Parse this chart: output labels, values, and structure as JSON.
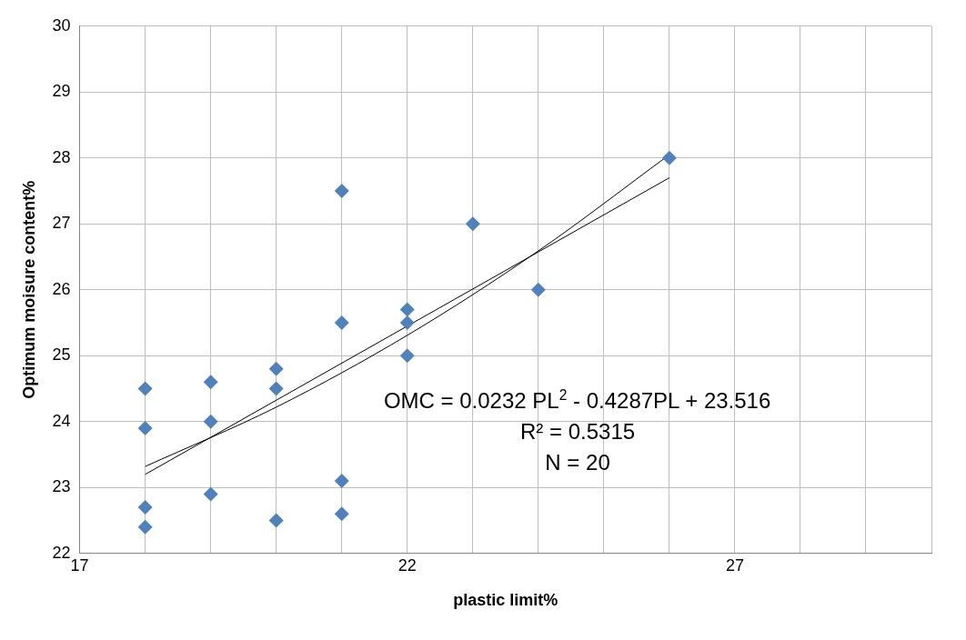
{
  "chart_data": {
    "type": "scatter",
    "xlabel": "plastic limit%",
    "ylabel": "Optimum moisure content%",
    "xlim": [
      17,
      30
    ],
    "xticks": [
      17,
      {
        "value": 18,
        "label": null
      },
      {
        "value": 19,
        "label": null
      },
      {
        "value": 20,
        "label": null
      },
      {
        "value": 21,
        "label": null
      },
      22,
      {
        "value": 23,
        "label": null
      },
      {
        "value": 24,
        "label": null
      },
      {
        "value": 25,
        "label": null
      },
      {
        "value": 26,
        "label": null
      },
      27,
      {
        "value": 28,
        "label": null
      },
      {
        "value": 29,
        "label": null
      },
      {
        "value": 30,
        "label": null
      }
    ],
    "ylim": [
      22,
      30
    ],
    "yticks": [
      22,
      23,
      24,
      25,
      26,
      27,
      28,
      29,
      30
    ],
    "grid": true,
    "legend": false,
    "marker": "diamond",
    "series": [
      {
        "type": "scatter",
        "color": "#4f81bd",
        "x": [
          18,
          18,
          18,
          18,
          19,
          19,
          19,
          20,
          20,
          20,
          21,
          21,
          21,
          21,
          22,
          22,
          22,
          23,
          24,
          26
        ],
        "values": [
          24.5,
          23.9,
          22.7,
          22.4,
          24.6,
          24.0,
          22.9,
          24.8,
          24.5,
          22.5,
          27.5,
          25.5,
          23.1,
          22.6,
          25.7,
          25.5,
          25.0,
          27.0,
          26.0,
          28.0
        ]
      },
      {
        "type": "line",
        "color": "#000000",
        "marker": "none",
        "x": [
          18,
          26
        ],
        "values": [
          23.2,
          27.7
        ]
      },
      {
        "type": "line",
        "color": "#000000",
        "marker": "none",
        "x": [
          18,
          20,
          22,
          24,
          26
        ],
        "values": [
          23.32,
          24.22,
          25.31,
          26.59,
          28.05
        ]
      }
    ],
    "annotations": [
      "OMC = 0.0232 PL$^{2}$ - 0.4287PL + 23.516",
      "R² = 0.5315",
      "N = 20"
    ]
  }
}
